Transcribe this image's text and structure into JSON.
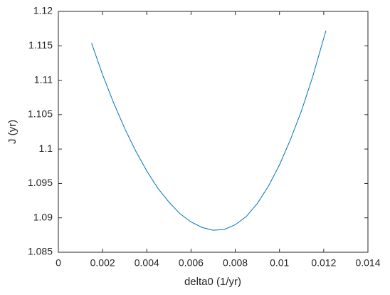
{
  "chart_data": {
    "type": "line",
    "xlabel": "delta0 (1/yr)",
    "ylabel": "J (yr)",
    "x": [
      0.0015,
      0.002,
      0.0025,
      0.003,
      0.0035,
      0.004,
      0.0045,
      0.005,
      0.0055,
      0.006,
      0.0065,
      0.007,
      0.0075,
      0.008,
      0.0085,
      0.009,
      0.0095,
      0.01,
      0.0105,
      0.011,
      0.0115,
      0.0121
    ],
    "series": [
      {
        "color": "#0072bd",
        "values": [
          1.1154,
          1.1108,
          1.1067,
          1.103,
          1.0997,
          1.0968,
          1.0943,
          1.0923,
          1.0906,
          1.0894,
          1.0886,
          1.0882,
          1.0883,
          1.089,
          1.0902,
          1.0921,
          1.0946,
          1.0977,
          1.1014,
          1.1056,
          1.1105,
          1.1172
        ]
      }
    ],
    "xlim": [
      0,
      0.014
    ],
    "xticks": [
      0,
      0.002,
      0.004,
      0.006,
      0.008,
      0.01,
      0.012,
      0.014
    ],
    "ylim": [
      1.085,
      1.12
    ],
    "yticks": [
      1.085,
      1.09,
      1.095,
      1.1,
      1.105,
      1.11,
      1.115,
      1.12
    ],
    "grid": false
  }
}
